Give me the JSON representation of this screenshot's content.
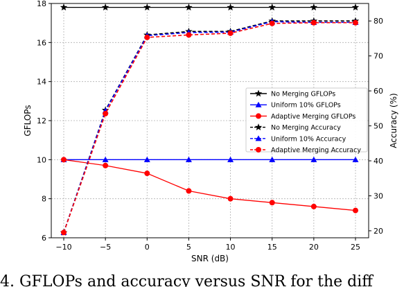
{
  "chart_data": {
    "type": "line",
    "x": [
      -10,
      -5,
      0,
      5,
      10,
      15,
      20,
      25
    ],
    "x_tick_labels": [
      "−10",
      "−5",
      "0",
      "5",
      "10",
      "15",
      "20",
      "25"
    ],
    "xlabel": "SNR (dB)",
    "xlim": [
      -11.5,
      26.5
    ],
    "y_left": {
      "label": "GFLOPs",
      "lim": [
        6,
        18
      ],
      "ticks": [
        6,
        8,
        10,
        12,
        14,
        16,
        18
      ],
      "tick_labels": [
        "6",
        "8",
        "10",
        "12",
        "14",
        "16",
        "18"
      ]
    },
    "y_right": {
      "label": "Accuracy (%)",
      "lim": [
        18,
        85
      ],
      "ticks": [
        20,
        30,
        40,
        50,
        60,
        70,
        80
      ],
      "tick_labels": [
        "20",
        "30",
        "40",
        "50",
        "60",
        "70",
        "80"
      ]
    },
    "grid": true,
    "legend_position": "center-right",
    "series": [
      {
        "name": "No Merging GFLOPs",
        "axis": "left",
        "color": "#000000",
        "marker": "star",
        "dashed": false,
        "values": [
          17.8,
          17.8,
          17.8,
          17.8,
          17.8,
          17.8,
          17.8,
          17.8
        ]
      },
      {
        "name": "Uniform 10% GFLOPs",
        "axis": "left",
        "color": "#0000ff",
        "marker": "triangle",
        "dashed": false,
        "values": [
          10,
          10,
          10,
          10,
          10,
          10,
          10,
          10
        ]
      },
      {
        "name": "Adaptive Merging GFLOPs",
        "axis": "left",
        "color": "#ff0000",
        "marker": "circle",
        "dashed": false,
        "values": [
          10.0,
          9.7,
          9.3,
          8.4,
          8.0,
          7.8,
          7.6,
          7.4
        ]
      },
      {
        "name": "No Merging Accuracy",
        "axis": "right",
        "color": "#000000",
        "marker": "star",
        "dashed": true,
        "values": [
          19.5,
          54.5,
          76.0,
          77.0,
          77.0,
          80.0,
          80.0,
          80.0
        ]
      },
      {
        "name": "Uniform 10% Accuracy",
        "axis": "right",
        "color": "#0000ff",
        "marker": "triangle",
        "dashed": true,
        "values": [
          19.5,
          54.3,
          75.8,
          76.7,
          76.8,
          79.8,
          79.6,
          79.6
        ]
      },
      {
        "name": "Adaptive Merging Accuracy",
        "axis": "right",
        "color": "#ff0000",
        "marker": "circle",
        "dashed": true,
        "values": [
          19.5,
          53.5,
          75.3,
          76.0,
          76.5,
          79.3,
          79.5,
          79.5
        ]
      }
    ]
  },
  "caption": "4. GFLOPs and accuracy versus SNR for the diff"
}
